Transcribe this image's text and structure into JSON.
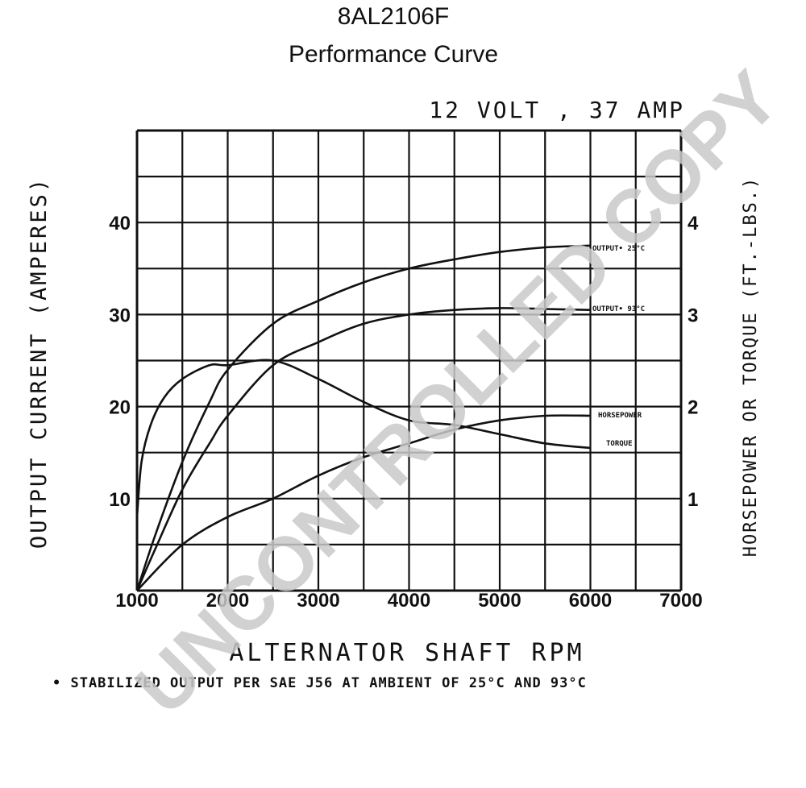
{
  "page": {
    "title_line1": "8AL2106F",
    "title_line2": "Performance Curve",
    "watermark": "UNCONTROLLED COPY"
  },
  "chart_data": {
    "type": "line",
    "subtitle": "12 VOLT , 37 AMP",
    "xlabel": "ALTERNATOR SHAFT RPM",
    "ylabel": "OUTPUT CURRENT (AMPERES)",
    "y2label": "HORSEPOWER OR TORQUE (FT.-LBS.)",
    "footnote": "• STABILIZED OUTPUT PER SAE J56 AT AMBIENT OF 25°C AND 93°C",
    "xlim": [
      1000,
      7000
    ],
    "ylim": [
      0,
      50
    ],
    "y2lim": [
      0,
      5
    ],
    "x_ticks": [
      "1000",
      "2000",
      "3000",
      "4000",
      "5000",
      "6000",
      "7000"
    ],
    "x_tick_values": [
      1000,
      2000,
      3000,
      4000,
      5000,
      6000,
      7000
    ],
    "y_ticks": [
      "10",
      "20",
      "30",
      "40"
    ],
    "y_tick_values": [
      10,
      20,
      30,
      40
    ],
    "y2_ticks": [
      "1",
      "2",
      "3",
      "4"
    ],
    "y2_tick_values": [
      1,
      2,
      3,
      4
    ],
    "grid": true,
    "series": [
      {
        "name": "OUTPUT• 25°C",
        "axis": "left",
        "x": [
          1000,
          1200,
          1500,
          1800,
          2000,
          2500,
          3000,
          3500,
          4000,
          4500,
          5000,
          5500,
          6000
        ],
        "y": [
          0,
          6,
          14,
          20.5,
          24,
          29,
          31.5,
          33.5,
          35,
          36,
          36.8,
          37.3,
          37.5
        ]
      },
      {
        "name": "OUTPUT• 93°C",
        "axis": "left",
        "x": [
          1000,
          1200,
          1500,
          1800,
          2000,
          2500,
          3000,
          3500,
          4000,
          4500,
          5000,
          5500,
          6000
        ],
        "y": [
          0,
          4.5,
          11,
          16,
          19,
          24.5,
          27,
          29,
          30,
          30.5,
          30.7,
          30.6,
          30.5
        ]
      },
      {
        "name": "HORSEPOWER",
        "axis": "right",
        "x": [
          1000,
          1500,
          2000,
          2500,
          3000,
          3500,
          4000,
          4500,
          5000,
          5500,
          6000
        ],
        "y": [
          0,
          0.5,
          0.8,
          1.0,
          1.25,
          1.45,
          1.6,
          1.75,
          1.85,
          1.9,
          1.9
        ]
      },
      {
        "name": "TORQUE",
        "axis": "right",
        "x": [
          1000,
          1050,
          1150,
          1300,
          1500,
          1800,
          2000,
          2500,
          3000,
          3500,
          4000,
          4500,
          5000,
          5500,
          6000
        ],
        "y": [
          0.8,
          1.4,
          1.8,
          2.1,
          2.3,
          2.45,
          2.45,
          2.5,
          2.3,
          2.05,
          1.85,
          1.8,
          1.7,
          1.6,
          1.55
        ]
      }
    ]
  }
}
